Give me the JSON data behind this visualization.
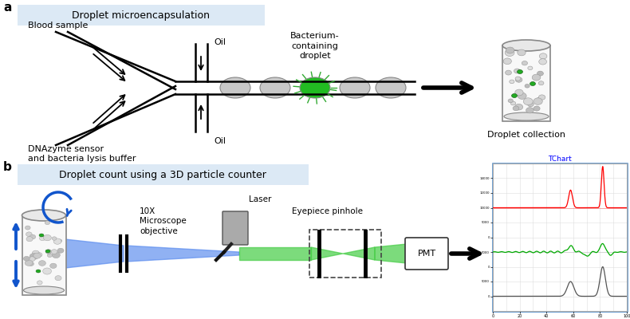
{
  "panel_a_title": "Droplet microencapsulation",
  "panel_b_title": "Droplet count using a 3D particle counter",
  "label_blood": "Blood sample",
  "label_oil_top": "Oil",
  "label_oil_bottom": "Oil",
  "label_bacterium": "Bacterium-\ncontaining\ndroplet",
  "label_dnazyme": "DNAzyme sensor\nand bacteria lysis buffer",
  "label_collection": "Droplet collection",
  "label_microscope": "10X\nMicroscope\nobjective",
  "label_laser": "Laser",
  "label_eyepiece": "Eyepiece pinhole",
  "label_pmt": "PMT",
  "tchart_title": "TChart",
  "bg_color": "#dce9f5",
  "white": "#ffffff",
  "black": "#000000",
  "green_bright": "#22bb22",
  "blue_arrow": "#1155cc",
  "gray_droplet": "#c8c8c8",
  "panel_b_border": "#4488cc"
}
